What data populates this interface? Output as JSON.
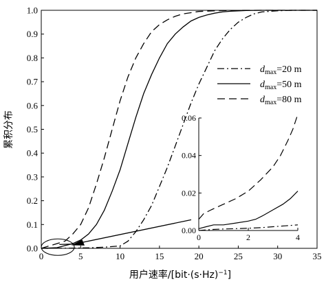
{
  "chart_data": {
    "type": "line",
    "xlabel": "用户速率/[bit·(s·Hz)",
    "xlabel_sup": "−1",
    "xlabel_end": "]",
    "ylabel": "累积分布",
    "xlim": [
      0,
      35
    ],
    "ylim": [
      0,
      1.0
    ],
    "x_ticks": [
      "0",
      "5",
      "10",
      "15",
      "20",
      "25",
      "30",
      "35"
    ],
    "y_ticks": [
      "0.0",
      "0.1",
      "0.2",
      "0.3",
      "0.4",
      "0.5",
      "0.6",
      "0.7",
      "0.8",
      "0.9",
      "1.0"
    ],
    "x_tick_values": [
      0,
      5,
      10,
      15,
      20,
      25,
      30,
      35
    ],
    "y_tick_values": [
      0,
      0.1,
      0.2,
      0.3,
      0.4,
      0.5,
      0.6,
      0.7,
      0.8,
      0.9,
      1.0
    ],
    "legend_position": "right, middle",
    "series": [
      {
        "name_main": "d",
        "name_sub": "max",
        "name_rest": "=20 m",
        "style": "dash-dot",
        "x": [
          0,
          4,
          6,
          8,
          10,
          11,
          12,
          13,
          14,
          15,
          16,
          17,
          18,
          19,
          20,
          21,
          22,
          23,
          24,
          25,
          26,
          27,
          28,
          30,
          32,
          35
        ],
        "y": [
          0,
          0.001,
          0.002,
          0.005,
          0.01,
          0.03,
          0.07,
          0.12,
          0.18,
          0.26,
          0.34,
          0.43,
          0.52,
          0.61,
          0.69,
          0.76,
          0.83,
          0.88,
          0.92,
          0.95,
          0.97,
          0.985,
          0.993,
          0.998,
          1.0,
          1.0
        ]
      },
      {
        "name_main": "d",
        "name_sub": "max",
        "name_rest": "=50 m",
        "style": "solid",
        "x": [
          0,
          2,
          4,
          5,
          6,
          7,
          8,
          9,
          10,
          11,
          12,
          13,
          14,
          15,
          16,
          17,
          18,
          19,
          20,
          21,
          22,
          23,
          24,
          26,
          28,
          30,
          35
        ],
        "y": [
          0,
          0.003,
          0.02,
          0.035,
          0.06,
          0.1,
          0.16,
          0.24,
          0.33,
          0.44,
          0.55,
          0.65,
          0.73,
          0.8,
          0.86,
          0.9,
          0.93,
          0.955,
          0.97,
          0.98,
          0.988,
          0.993,
          0.996,
          0.999,
          1.0,
          1.0,
          1.0
        ]
      },
      {
        "name_main": "d",
        "name_sub": "max",
        "name_rest": "=80 m",
        "style": "dash",
        "x": [
          0,
          1,
          2,
          3,
          4,
          5,
          6,
          7,
          8,
          9,
          10,
          11,
          12,
          13,
          14,
          15,
          16,
          17,
          18,
          19,
          20,
          22,
          24,
          26,
          28,
          30,
          35
        ],
        "y": [
          0,
          0.01,
          0.02,
          0.03,
          0.06,
          0.1,
          0.17,
          0.27,
          0.38,
          0.5,
          0.62,
          0.72,
          0.8,
          0.86,
          0.91,
          0.94,
          0.96,
          0.975,
          0.985,
          0.99,
          0.995,
          0.998,
          0.999,
          1.0,
          1.0,
          1.0,
          1.0
        ]
      }
    ],
    "inset": {
      "xlim": [
        0,
        4
      ],
      "ylim": [
        0,
        0.06
      ],
      "x_ticks": [
        "0",
        "2",
        "4"
      ],
      "y_ticks": [
        "0.00",
        "0.02",
        "0.04",
        "0.06"
      ],
      "x_tick_values": [
        0,
        2,
        4
      ],
      "y_tick_values": [
        0,
        0.02,
        0.04,
        0.06
      ],
      "series": [
        {
          "style": "dash-dot",
          "x": [
            0,
            0.5,
            1,
            1.5,
            2,
            2.5,
            3,
            3.5,
            4
          ],
          "y": [
            0,
            0.0005,
            0.0008,
            0.001,
            0.0012,
            0.0015,
            0.002,
            0.0025,
            0.003
          ]
        },
        {
          "style": "solid",
          "x": [
            0,
            0.3,
            0.6,
            1,
            1.5,
            2,
            2.3,
            2.6,
            3,
            3.4,
            3.7,
            4
          ],
          "y": [
            0.001,
            0.002,
            0.003,
            0.003,
            0.004,
            0.005,
            0.006,
            0.008,
            0.011,
            0.014,
            0.017,
            0.021
          ]
        },
        {
          "style": "dash",
          "x": [
            0,
            0.2,
            0.5,
            1,
            1.5,
            2,
            2.5,
            3,
            3.3,
            3.6,
            3.8,
            4
          ],
          "y": [
            0.006,
            0.009,
            0.011,
            0.014,
            0.017,
            0.021,
            0.027,
            0.034,
            0.04,
            0.048,
            0.054,
            0.062
          ]
        }
      ]
    }
  }
}
